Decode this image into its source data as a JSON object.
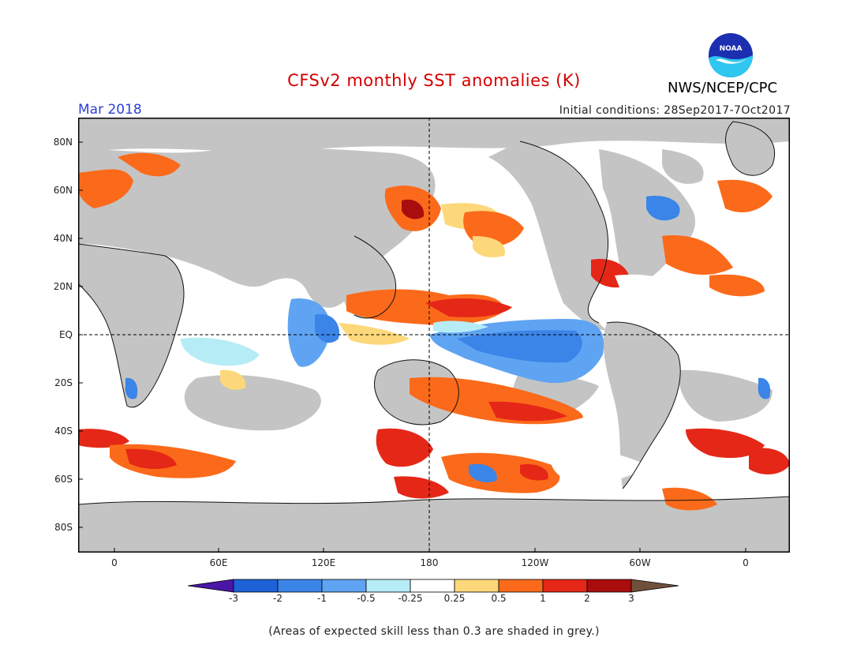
{
  "header": {
    "title": "CFSv2 monthly SST anomalies (K)",
    "agency": "NWS/NCEP/CPC",
    "month": "Mar 2018",
    "initial_conditions": "Initial conditions: 28Sep2017-7Oct2017"
  },
  "logo": {
    "text": "NOAA",
    "icon": "noaa-logo"
  },
  "map": {
    "lat_labels": [
      "80N",
      "60N",
      "40N",
      "20N",
      "EQ",
      "20S",
      "40S",
      "60S",
      "80S"
    ],
    "lon_labels": [
      "0",
      "60E",
      "120E",
      "180",
      "120W",
      "60W",
      "0"
    ]
  },
  "colorbar": {
    "labels": [
      "-3",
      "-2",
      "-1",
      "-0.5",
      "-0.25",
      "0.25",
      "0.5",
      "1",
      "2",
      "3"
    ],
    "colors": [
      "#4a16a8",
      "#1d62d6",
      "#3b84e8",
      "#5fa4f2",
      "#b6ecf6",
      "#ffffff",
      "#fdd87a",
      "#fb6a1a",
      "#e52717",
      "#aa0d0d",
      "#70503b"
    ]
  },
  "footnote": "(Areas of expected skill less than 0.3 are shaded in grey.)",
  "colors": {
    "land": "#ffffff",
    "low_skill": "#c4c4c4",
    "neutral": "#ffffff",
    "warm": "#fb6a1a",
    "warm_strong": "#e52717",
    "warm_max": "#aa0d0d",
    "cool_light": "#b6ecf6",
    "cool": "#5fa4f2",
    "cool_strong": "#3b84e8",
    "cool_max": "#1d62d6",
    "pale_warm": "#fdd87a"
  }
}
